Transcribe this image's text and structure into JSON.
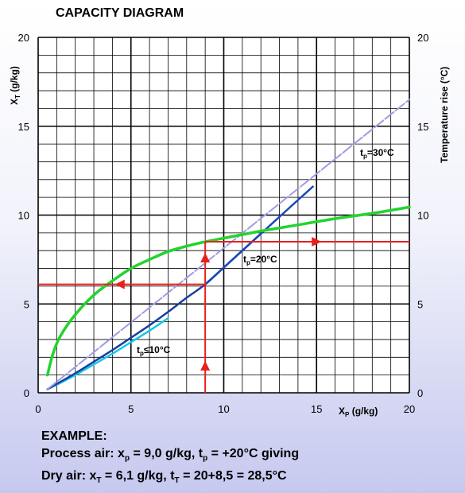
{
  "title": "CAPACITY DIAGRAM",
  "chart_data": {
    "type": "line",
    "title": "CAPACITY DIAGRAM",
    "xlabel": "X_P (g/kg)",
    "ylabel_left": "X_T (g/kg)",
    "ylabel_right": "Temperature rise (°C)",
    "xlim": [
      0,
      20
    ],
    "ylim": [
      0,
      20
    ],
    "y2lim": [
      0,
      20
    ],
    "xticks": [
      "0",
      "5",
      "10",
      "15",
      "20"
    ],
    "yticks": [
      "0",
      "5",
      "10",
      "15",
      "20"
    ],
    "grid": true,
    "series": [
      {
        "name": "tp≤10°C",
        "color": "#19c6e8",
        "x": [
          0.5,
          1,
          2,
          3,
          4,
          5,
          6,
          7
        ],
        "y": [
          0.2,
          0.45,
          1.0,
          1.6,
          2.2,
          2.85,
          3.5,
          4.2
        ]
      },
      {
        "name": "tp=20°C",
        "color": "#1a3f9e",
        "x": [
          0.5,
          1,
          2,
          3,
          4,
          5,
          6,
          7,
          8,
          9,
          10,
          11,
          12
        ],
        "y": [
          0.2,
          0.5,
          1.1,
          1.75,
          2.4,
          3.1,
          3.8,
          4.55,
          5.35,
          6.1,
          7.05,
          8.0,
          8.95
        ]
      },
      {
        "name": "tp=30°C",
        "color": "#1b48b8",
        "x": [
          9,
          10,
          11,
          12,
          13,
          14,
          14.8
        ],
        "y": [
          6.1,
          7.05,
          8.0,
          8.95,
          9.9,
          10.85,
          11.6
        ]
      },
      {
        "name": "Reference line",
        "color": "#9f9ce3",
        "dashed": true,
        "x": [
          0.5,
          20
        ],
        "y": [
          0.2,
          16.5
        ]
      },
      {
        "name": "Temperature rise",
        "color": "#22d42e",
        "axis": "right",
        "x": [
          0.5,
          0.8,
          1.2,
          2,
          3,
          4,
          5,
          6,
          7,
          8,
          9,
          10,
          12,
          14,
          16,
          18,
          20
        ],
        "y": [
          1.0,
          2.2,
          3.2,
          4.4,
          5.5,
          6.3,
          7.0,
          7.5,
          7.95,
          8.25,
          8.5,
          8.7,
          9.1,
          9.45,
          9.8,
          10.1,
          10.45
        ]
      }
    ],
    "annotations": [
      {
        "text": "tp=30°C"
      },
      {
        "text": "tp=20°C"
      },
      {
        "text": "tp≤10°C"
      }
    ],
    "example_guides": {
      "color": "#e8201c",
      "xp": 9.0,
      "xt": 6.1,
      "temperature_rise": 8.5
    }
  },
  "example": {
    "heading": "EXAMPLE:"
  }
}
